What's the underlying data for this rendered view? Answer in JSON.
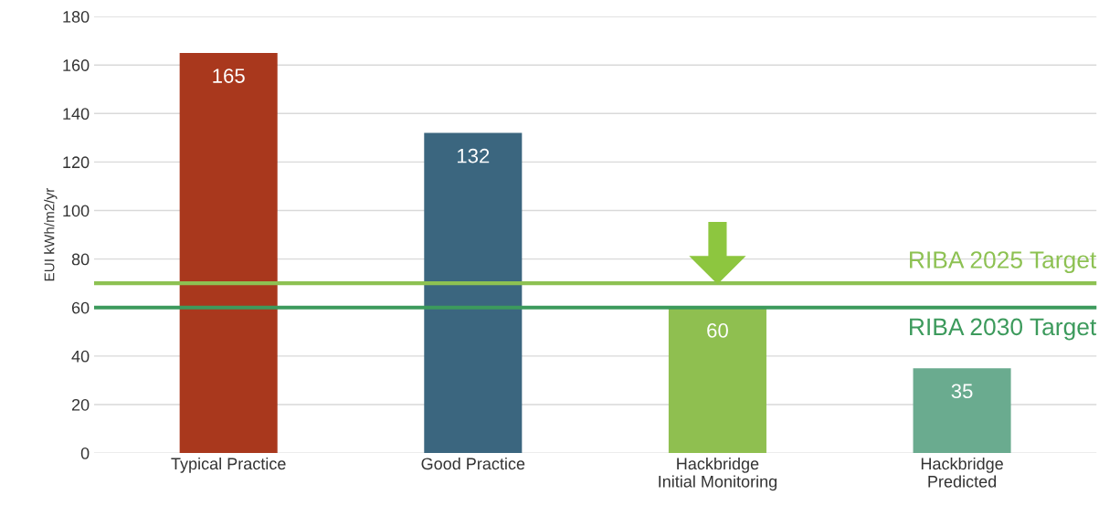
{
  "chart_data": {
    "type": "bar",
    "ylabel": "EUI kWh/m2/yr",
    "categories": [
      "Typical Practice",
      "Good Practice",
      "Hackbridge\nInitial Monitoring",
      "Hackbridge\nPredicted"
    ],
    "values": [
      165,
      132,
      60,
      35
    ],
    "colors": [
      "#a9381d",
      "#3b667f",
      "#8fbf50",
      "#6aab8f"
    ],
    "ylim": [
      0,
      180
    ],
    "yticks": [
      0,
      20,
      40,
      60,
      80,
      100,
      120,
      140,
      160,
      180
    ],
    "grid": "y",
    "data_labels": true,
    "ref_lines": [
      {
        "axis": "y",
        "value": 70,
        "label": "RIBA 2025 Target",
        "color": "#8dc152"
      },
      {
        "axis": "y",
        "value": 60,
        "label": "RIBA 2030 Target",
        "color": "#3c9a5c"
      }
    ]
  }
}
